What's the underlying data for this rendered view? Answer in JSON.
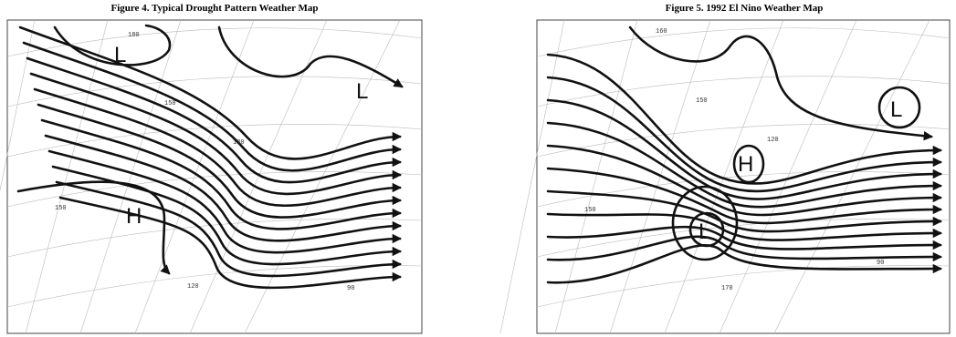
{
  "figures": [
    {
      "caption": "Figure 4.  Typical Drought Pattern Weather Map",
      "labels": [
        "L",
        "L",
        "H",
        "180",
        "150",
        "120",
        "150",
        "120",
        "90"
      ]
    },
    {
      "caption": "Figure 5. 1992 El Nino Weather Map",
      "labels": [
        "H",
        "L",
        "L",
        "160",
        "150",
        "120",
        "150",
        "170",
        "90"
      ]
    }
  ]
}
